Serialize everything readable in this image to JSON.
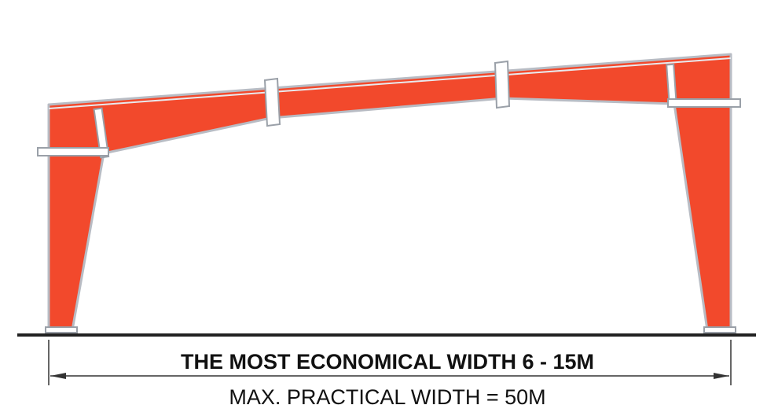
{
  "labels": {
    "economical": "THE MOST ECONOMICAL WIDTH 6 - 15M",
    "max": "MAX. PRACTICAL WIDTH = 50M"
  }
}
